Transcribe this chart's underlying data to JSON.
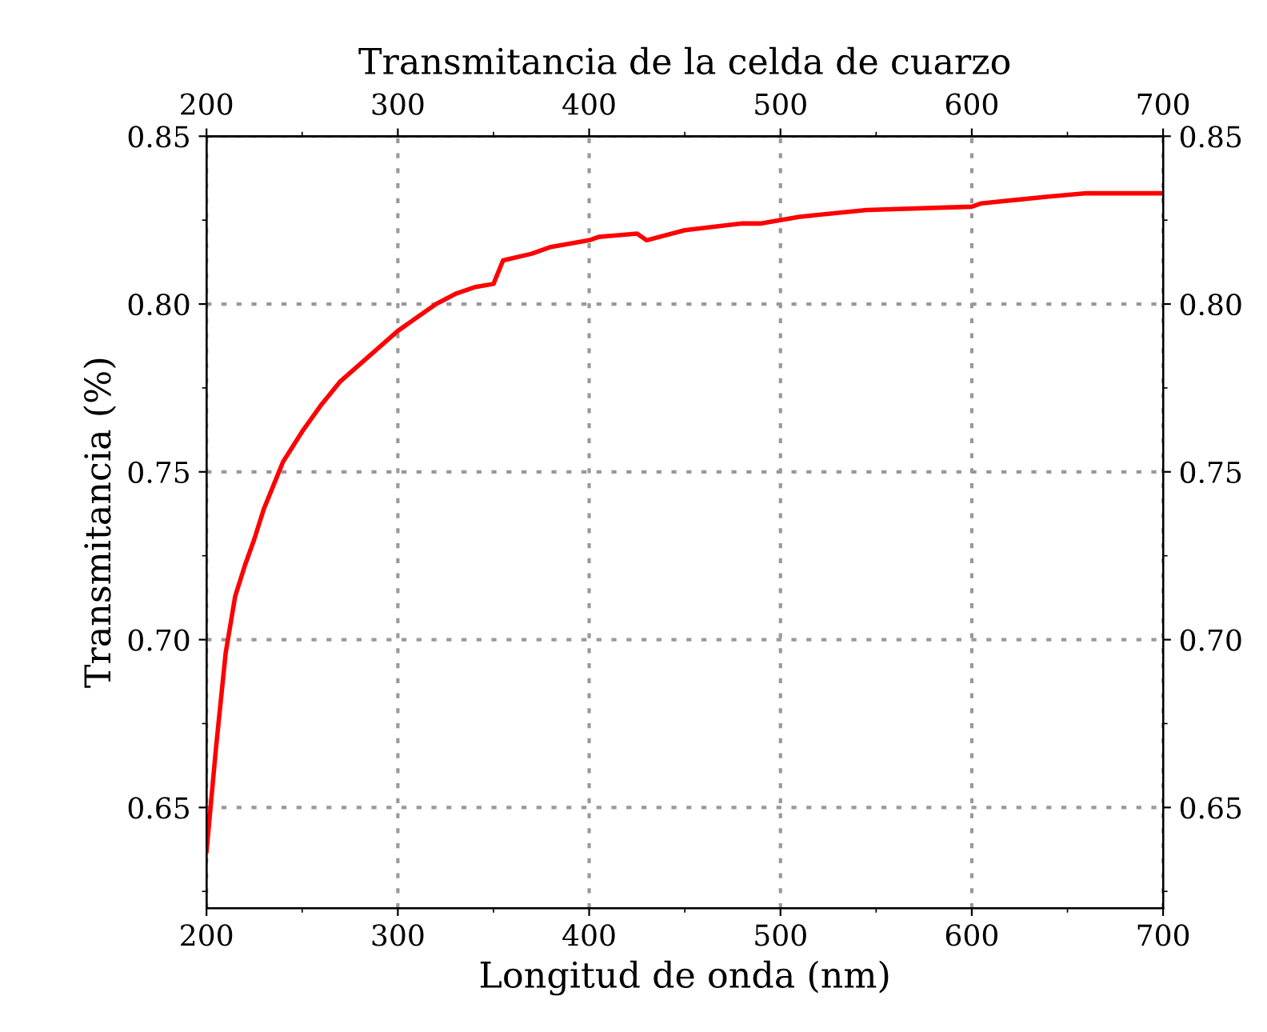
{
  "chart_data": {
    "type": "line",
    "title": "Transmitancia de la celda de cuarzo",
    "xlabel": "Longitud de onda (nm)",
    "ylabel": "Transmitancia (%)",
    "x": [
      200,
      205,
      210,
      215,
      220,
      225,
      230,
      235,
      240,
      250,
      260,
      270,
      280,
      290,
      300,
      310,
      320,
      330,
      340,
      350,
      355,
      370,
      380,
      400,
      405,
      425,
      430,
      450,
      480,
      490,
      510,
      545,
      600,
      605,
      640,
      660,
      700
    ],
    "series": [
      {
        "color": "#ff0000",
        "values": [
          0.637,
          0.668,
          0.696,
          0.713,
          0.722,
          0.73,
          0.739,
          0.746,
          0.753,
          0.762,
          0.77,
          0.777,
          0.782,
          0.787,
          0.792,
          0.796,
          0.8,
          0.803,
          0.805,
          0.806,
          0.813,
          0.815,
          0.817,
          0.819,
          0.82,
          0.821,
          0.819,
          0.822,
          0.824,
          0.824,
          0.826,
          0.828,
          0.829,
          0.83,
          0.832,
          0.833,
          0.833
        ]
      }
    ],
    "xlim": [
      200,
      700
    ],
    "xticks": [
      200,
      300,
      400,
      500,
      600,
      700
    ],
    "x2lim": [
      200,
      700
    ],
    "x2ticks": [
      200,
      300,
      400,
      500,
      600,
      700
    ],
    "ylim": [
      0.62,
      0.85
    ],
    "yticks": [
      0.65,
      {
        "value": 0.7,
        "label": "0.70"
      },
      0.75,
      {
        "value": 0.8,
        "label": "0.80"
      },
      0.85
    ],
    "y2lim": [
      0.62,
      0.85
    ],
    "y2ticks": [
      0.65,
      {
        "value": 0.7,
        "label": "0.70"
      },
      0.75,
      {
        "value": 0.8,
        "label": "0.80"
      },
      0.85
    ],
    "grid": true,
    "line_style": "solid",
    "marker": "none"
  }
}
